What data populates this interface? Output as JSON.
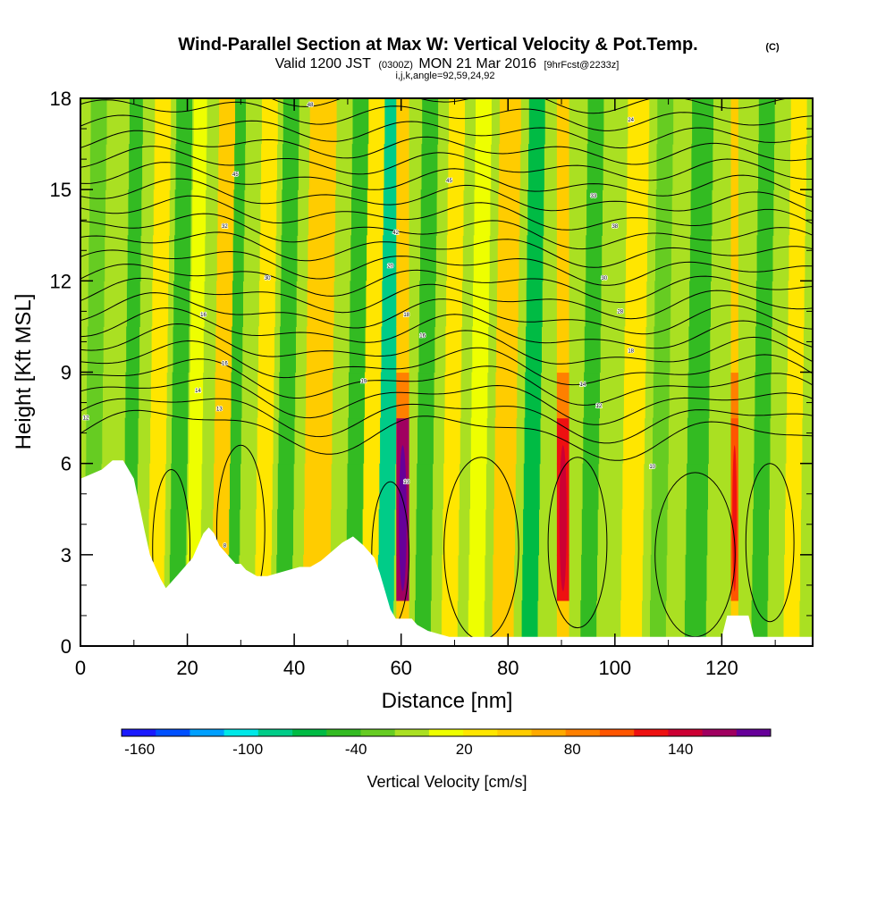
{
  "title": {
    "main": "Wind-Parallel Section at Max W: Vertical Velocity & Pot.Temp.",
    "copyright": "(C)",
    "valid_prefix": "Valid 1200 JST",
    "valid_zulu": "(0300Z)",
    "valid_date": "MON 21 Mar 2016",
    "forecast": "[9hrFcst@2233z]",
    "indices": "i,j,k,angle=92,59,24,92"
  },
  "chart_data": {
    "type": "heatmap",
    "xlabel": "Distance [nm]",
    "ylabel": "Height [Kft MSL]",
    "xlim": [
      0,
      137
    ],
    "ylim": [
      0,
      18
    ],
    "x_ticks": [
      0,
      20,
      40,
      60,
      80,
      100,
      120
    ],
    "y_ticks": [
      0,
      3,
      6,
      9,
      12,
      15,
      18
    ],
    "x_tick_labels": [
      "0",
      "20",
      "40",
      "60",
      "80",
      "100",
      "120"
    ],
    "y_tick_labels": [
      "0",
      "3",
      "6",
      "9",
      "12",
      "15",
      "18"
    ],
    "colorbar": {
      "label": "Vertical Velocity [cm/s]",
      "min": -170,
      "max": 190,
      "step": 20,
      "tick_labels": [
        "-160",
        "-100",
        "-40",
        "20",
        "80",
        "140"
      ],
      "tick_values": [
        -160,
        -100,
        -40,
        20,
        80,
        140
      ],
      "colors": [
        "#1a1aff",
        "#0050ff",
        "#00a0ff",
        "#00e8e8",
        "#00cc88",
        "#00bb44",
        "#33bb22",
        "#66cc22",
        "#aae022",
        "#eeff00",
        "#ffe600",
        "#ffcc00",
        "#ffaa00",
        "#ff8000",
        "#ff5500",
        "#ee1111",
        "#cc0033",
        "#a00060",
        "#660099"
      ]
    },
    "terrain_profile": {
      "distance_nm": [
        0,
        4,
        6,
        8,
        10,
        12,
        13,
        14,
        15,
        16,
        17,
        18,
        19,
        20,
        21,
        22,
        23,
        24,
        25,
        26,
        27,
        28,
        29,
        30,
        31,
        32,
        33,
        35,
        37,
        39,
        41,
        43,
        45,
        47,
        49,
        51,
        53,
        55,
        56,
        57,
        58,
        59,
        60,
        61,
        62,
        63,
        65,
        67,
        69,
        70,
        80,
        90,
        100,
        110,
        120,
        121,
        125,
        126,
        130,
        137
      ],
      "height_kft": [
        5.5,
        5.8,
        6.1,
        6.1,
        5.5,
        3.8,
        3.0,
        2.6,
        2.2,
        1.9,
        2.1,
        2.3,
        2.5,
        2.7,
        2.9,
        3.3,
        3.7,
        3.9,
        3.7,
        3.3,
        3.1,
        2.9,
        2.7,
        2.7,
        2.5,
        2.4,
        2.3,
        2.3,
        2.4,
        2.5,
        2.6,
        2.6,
        2.8,
        3.1,
        3.4,
        3.6,
        3.3,
        2.9,
        2.4,
        1.8,
        1.2,
        0.9,
        0.9,
        0.9,
        0.9,
        0.7,
        0.5,
        0.4,
        0.3,
        0.3,
        0.3,
        0.3,
        0.3,
        0.3,
        0.3,
        1.0,
        1.0,
        0.3,
        0.3,
        0.3
      ]
    },
    "vertical_velocity_bands": [
      {
        "x": 2,
        "w": 3,
        "v": -20
      },
      {
        "x": 9,
        "w": 2.5,
        "v": -50
      },
      {
        "x": 14,
        "w": 3,
        "v": 40
      },
      {
        "x": 18,
        "w": 3,
        "v": -40
      },
      {
        "x": 21,
        "w": 2.5,
        "v": 10
      },
      {
        "x": 26,
        "w": 3,
        "v": 60
      },
      {
        "x": 28.5,
        "w": 2,
        "v": -50
      },
      {
        "x": 34,
        "w": 3,
        "v": 30
      },
      {
        "x": 38,
        "w": 3,
        "v": -45
      },
      {
        "x": 44,
        "w": 5,
        "v": 60
      },
      {
        "x": 51,
        "w": 3,
        "v": -40
      },
      {
        "x": 54,
        "w": 3,
        "v": 30
      },
      {
        "x": 57,
        "w": 3,
        "v": -80
      },
      {
        "x": 60.3,
        "w": 2.4,
        "v": 170
      },
      {
        "x": 64,
        "w": 3,
        "v": -40
      },
      {
        "x": 69,
        "w": 3,
        "v": 30
      },
      {
        "x": 74,
        "w": 3,
        "v": 10
      },
      {
        "x": 79,
        "w": 4,
        "v": 60
      },
      {
        "x": 84,
        "w": 3,
        "v": -60
      },
      {
        "x": 90.3,
        "w": 2.3,
        "v": 130
      },
      {
        "x": 95,
        "w": 3,
        "v": -50
      },
      {
        "x": 103,
        "w": 4,
        "v": 40
      },
      {
        "x": 108,
        "w": 3,
        "v": -20
      },
      {
        "x": 115,
        "w": 4,
        "v": -40
      },
      {
        "x": 122.4,
        "w": 1.4,
        "v": 110
      },
      {
        "x": 127,
        "w": 3,
        "v": -40
      },
      {
        "x": 133,
        "w": 3,
        "v": 40
      }
    ],
    "theta_contour_labels": [
      {
        "x": 43,
        "y": 17.8,
        "text": "48"
      },
      {
        "x": 29,
        "y": 15.5,
        "text": "45"
      },
      {
        "x": 69,
        "y": 15.3,
        "text": "45"
      },
      {
        "x": 96,
        "y": 14.8,
        "text": "33"
      },
      {
        "x": 103,
        "y": 17.3,
        "text": "24"
      },
      {
        "x": 27,
        "y": 13.8,
        "text": "32"
      },
      {
        "x": 59,
        "y": 13.6,
        "text": "42"
      },
      {
        "x": 100,
        "y": 13.8,
        "text": "38"
      },
      {
        "x": 35,
        "y": 12.1,
        "text": "30"
      },
      {
        "x": 58,
        "y": 12.5,
        "text": "20"
      },
      {
        "x": 98,
        "y": 12.1,
        "text": "30"
      },
      {
        "x": 23,
        "y": 10.9,
        "text": "16"
      },
      {
        "x": 61,
        "y": 10.9,
        "text": "18"
      },
      {
        "x": 101,
        "y": 11.0,
        "text": "28"
      },
      {
        "x": 64,
        "y": 10.2,
        "text": "16"
      },
      {
        "x": 103,
        "y": 9.7,
        "text": "18"
      },
      {
        "x": 27,
        "y": 9.3,
        "text": "16"
      },
      {
        "x": 53,
        "y": 8.7,
        "text": "19"
      },
      {
        "x": 94,
        "y": 8.6,
        "text": "14"
      },
      {
        "x": 22,
        "y": 8.4,
        "text": "14"
      },
      {
        "x": 97,
        "y": 7.9,
        "text": "12"
      },
      {
        "x": 26,
        "y": 7.8,
        "text": "13"
      },
      {
        "x": 1,
        "y": 7.5,
        "text": "12"
      },
      {
        "x": 61,
        "y": 5.4,
        "text": "13"
      },
      {
        "x": 107,
        "y": 5.9,
        "text": "10"
      },
      {
        "x": 27,
        "y": 3.3,
        "text": "8"
      }
    ]
  }
}
